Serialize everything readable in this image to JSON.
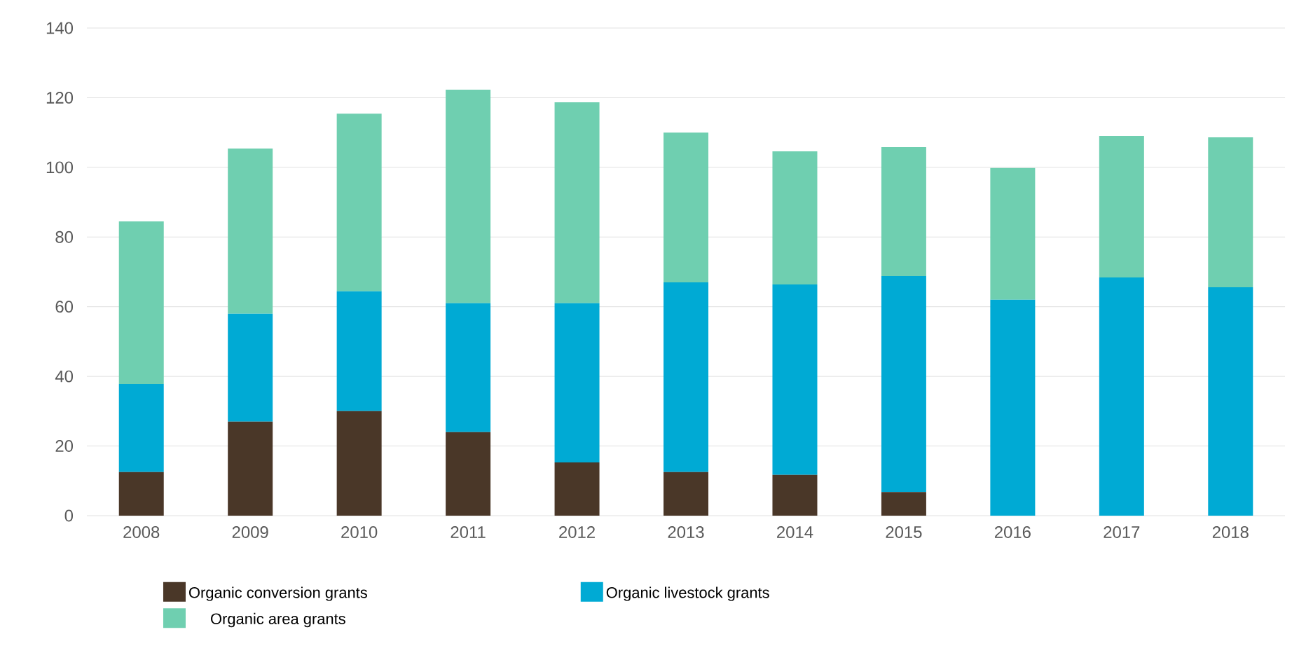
{
  "chart_data": {
    "type": "bar",
    "stacked": true,
    "categories": [
      "2008",
      "2009",
      "2010",
      "2011",
      "2012",
      "2013",
      "2014",
      "2015",
      "2016",
      "2017",
      "2018"
    ],
    "series": [
      {
        "name": "Organic conversion grants",
        "color": "#4a3728",
        "values": [
          12.5,
          27,
          30,
          24,
          15.3,
          12.5,
          11.7,
          6.8,
          0,
          0,
          0
        ]
      },
      {
        "name": "Organic livestock grants",
        "color": "#00aad4",
        "values": [
          25.3,
          31,
          34.4,
          37,
          45.7,
          54.5,
          54.7,
          62,
          62,
          68.4,
          65.6
        ]
      },
      {
        "name": "Organic area grants",
        "color": "#6fcfb0",
        "values": [
          46.7,
          47.4,
          51,
          61.3,
          57.7,
          43,
          38.2,
          37,
          37.8,
          40.6,
          43
        ]
      }
    ],
    "ylim": [
      0,
      140
    ],
    "yticks": [
      0,
      20,
      40,
      60,
      80,
      100,
      120,
      140
    ],
    "grid": "y",
    "legend": "bottom"
  }
}
